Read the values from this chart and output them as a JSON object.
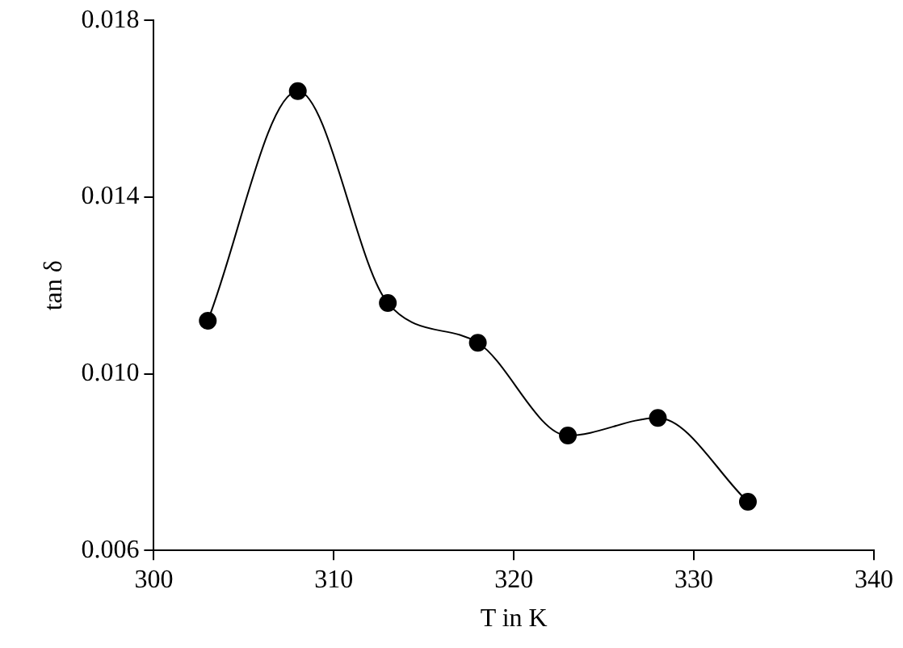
{
  "chart_data": {
    "type": "line",
    "xlabel": "T in K",
    "ylabel": "tan δ",
    "x": [
      303,
      308,
      313,
      318,
      323,
      328,
      333
    ],
    "series": [
      {
        "color": "#000000",
        "values": [
          0.0112,
          0.0164,
          0.0116,
          0.0107,
          0.0086,
          0.009,
          0.0071
        ]
      }
    ],
    "xlim": [
      300,
      340
    ],
    "xticks": [
      300,
      310,
      320,
      330,
      340
    ],
    "ylim": [
      0.006,
      0.018
    ],
    "yticks": [
      0.006,
      {
        "value": 0.01,
        "label": "0.010"
      },
      0.014,
      0.018
    ],
    "grid": false,
    "legend": false,
    "marker": "circle",
    "line_style": "solid"
  }
}
